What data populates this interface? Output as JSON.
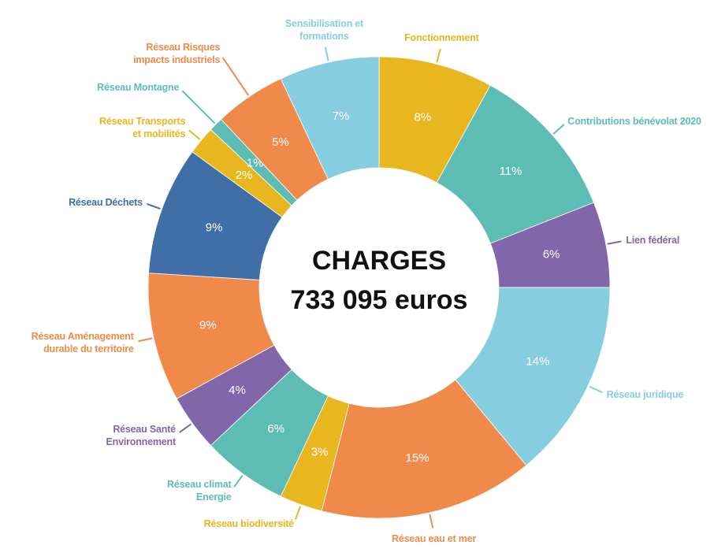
{
  "chart_data": {
    "type": "donut",
    "center_label": [
      "CHARGES",
      "733 095 euros"
    ],
    "categories": [
      "Fonctionnement",
      "Contributions bénévolat 2020",
      "Lien fédéral",
      "Réseau juridique",
      "Réseau eau et mer",
      "Réseau biodiversité",
      "Réseau climat\nEnergie",
      "Réseau Santé\nEnvironnement",
      "Réseau Aménagement\ndurable du territoire",
      "Réseau Déchets",
      "Réseau Transports\net mobilités",
      "Réseau Montagne",
      "Réseau Risques\nimpacts industriels",
      "Sensibilisation et\nformations"
    ],
    "values": [
      8,
      11,
      6,
      14,
      15,
      3,
      6,
      4,
      9,
      9,
      2,
      1,
      5,
      7
    ],
    "value_labels": [
      "8%",
      "11%",
      "6%",
      "14%",
      "15%",
      "3%",
      "6%",
      "4%",
      "9%",
      "9%",
      "2%",
      "1%",
      "5%",
      "7%"
    ],
    "colors": [
      "#e8b61e",
      "#5dbdb4",
      "#8166a9",
      "#87cde0",
      "#f08a4b",
      "#e8b61e",
      "#5dbdb4",
      "#8166a9",
      "#f08a4b",
      "#3f6fa6",
      "#e8b61e",
      "#5dbdb4",
      "#f08a4b",
      "#87cde0"
    ]
  }
}
